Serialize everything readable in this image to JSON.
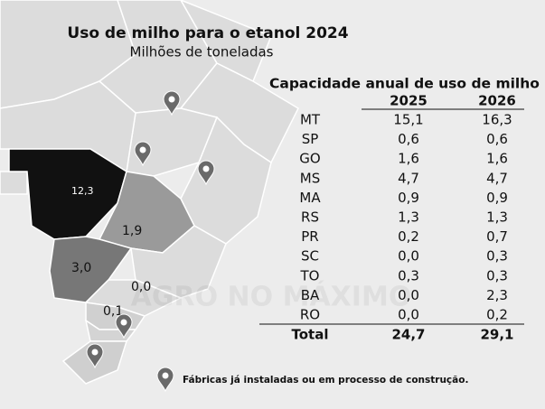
{
  "header": {
    "title": "Uso de milho para o etanol 2024",
    "subtitle": "Milhões de toneladas"
  },
  "map": {
    "labels": [
      "12,3",
      "1,9",
      "3,0",
      "0,0",
      "0,1"
    ]
  },
  "table": {
    "title": "Capacidade anual de uso de milho",
    "columns": [
      "2025",
      "2026"
    ],
    "rows": [
      [
        "MT",
        "15,1",
        "16,3"
      ],
      [
        "SP",
        "0,6",
        "0,6"
      ],
      [
        "GO",
        "1,6",
        "1,6"
      ],
      [
        "MS",
        "4,7",
        "4,7"
      ],
      [
        "MA",
        "0,9",
        "0,9"
      ],
      [
        "RS",
        "1,3",
        "1,3"
      ],
      [
        "PR",
        "0,2",
        "0,7"
      ],
      [
        "SC",
        "0,0",
        "0,3"
      ],
      [
        "TO",
        "0,3",
        "0,3"
      ],
      [
        "BA",
        "0,0",
        "2,3"
      ],
      [
        "RO",
        "0,0",
        "0,2"
      ]
    ],
    "total": [
      "Total",
      "24,7",
      "29,1"
    ]
  },
  "legend": "Fábricas já instaladas ou em processo de construção.",
  "watermark": "AGRO NO MÁXIMO"
}
